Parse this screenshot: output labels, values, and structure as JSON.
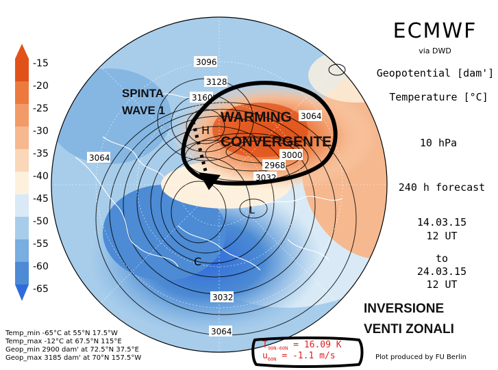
{
  "colorbar": {
    "labels": [
      "-15",
      "-20",
      "-25",
      "-30",
      "-35",
      "-40",
      "-45",
      "-50",
      "-55",
      "-60",
      "-65"
    ],
    "colors": [
      "#e0521a",
      "#ec7a3f",
      "#f29a68",
      "#f6b88f",
      "#fad7b8",
      "#fdf1de",
      "#d9eaf6",
      "#a8cdeb",
      "#78aee0",
      "#4d8bd4",
      "#2f6bdb"
    ]
  },
  "header": {
    "model": "ECMWF",
    "via": "via DWD",
    "geopotential": "Geopotential [dam']",
    "temperature": "Temperature [°C]",
    "level": "10 hPa",
    "forecast": "240 h forecast",
    "start_date": "14.03.15",
    "start_time": "12 UT",
    "to": "to",
    "end_date": "24.03.15",
    "end_time": "12 UT"
  },
  "annotations": {
    "spinta_line1": "SPINTA",
    "spinta_line2": "WAVE 1",
    "warming_line1": "WARMING",
    "warming_line2": "CONVERGENTE",
    "inversione_line1": "INVERSIONE",
    "inversione_line2": "VENTI ZONALI"
  },
  "contour_labels": [
    "3096",
    "3128",
    "3160",
    "3064",
    "3064",
    "2968",
    "3000",
    "3032",
    "3064",
    "3032",
    "3064"
  ],
  "centers": {
    "high": "H",
    "low": "C",
    "low2": "L"
  },
  "stats": {
    "temp_min": "Temp_min  -65°C at 55°N 17.5°W",
    "temp_max": "Temp_max  -12°C at 67.5°N 115°E",
    "geop_min": "Geop_min  2900 dam' at 72.5°N 37.5°E",
    "geop_max": "Geop_max  3185 dam' at 70°N 157.5°W"
  },
  "indices": {
    "t_label": "T",
    "t_sub": "90N-60N",
    "t_value": "= 16.09 K",
    "u_label": "u",
    "u_sub": "60N",
    "u_value": "= -1.1 m/s"
  },
  "credit": "Plot produced by FU Berlin"
}
